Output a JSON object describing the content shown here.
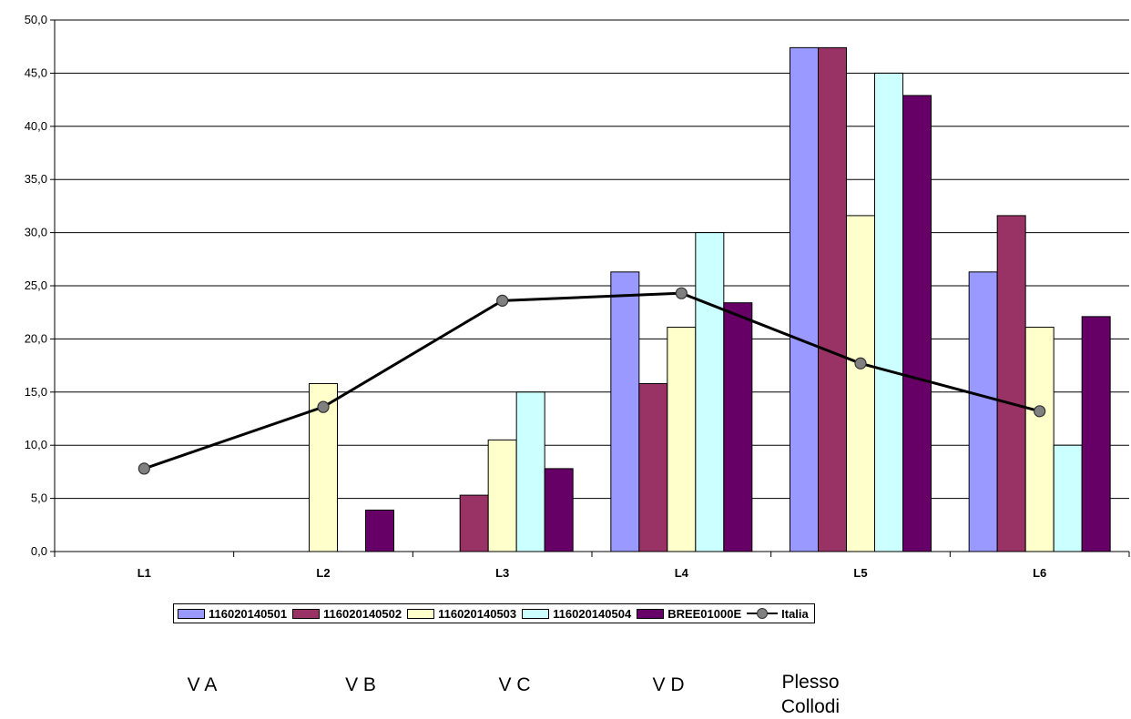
{
  "chart_data": {
    "type": "bar",
    "categories": [
      "L1",
      "L2",
      "L3",
      "L4",
      "L5",
      "L6"
    ],
    "ylim": [
      0,
      50
    ],
    "yticks": [
      "0,0",
      "5,0",
      "10,0",
      "15,0",
      "20,0",
      "25,0",
      "30,0",
      "35,0",
      "40,0",
      "45,0",
      "50,0"
    ],
    "grid": true,
    "legend_position": "bottom",
    "series": [
      {
        "name": "116020140501",
        "color": "#9999ff",
        "values": [
          0,
          0,
          0,
          26.3,
          47.4,
          26.3
        ]
      },
      {
        "name": "116020140502",
        "color": "#993366",
        "values": [
          0,
          0,
          5.3,
          15.8,
          47.4,
          31.6
        ]
      },
      {
        "name": "116020140503",
        "color": "#ffffcc",
        "values": [
          0,
          15.8,
          10.5,
          21.1,
          31.6,
          21.1
        ]
      },
      {
        "name": "116020140504",
        "color": "#ccffff",
        "values": [
          0,
          0,
          15.0,
          30.0,
          45.0,
          10.0
        ]
      },
      {
        "name": "BREE01000E",
        "color": "#660066",
        "values": [
          0,
          3.9,
          7.8,
          23.4,
          42.9,
          22.1
        ]
      }
    ],
    "line_series": {
      "name": "Italia",
      "color": "#000000",
      "marker_color": "#808080",
      "values": [
        7.8,
        13.6,
        23.6,
        24.3,
        17.7,
        13.2
      ]
    }
  },
  "labels": {
    "va": "V A",
    "vb": "V B",
    "vc": "V C",
    "vd": "V D",
    "plesso_line1": "Plesso",
    "plesso_line2": "Collodi"
  }
}
